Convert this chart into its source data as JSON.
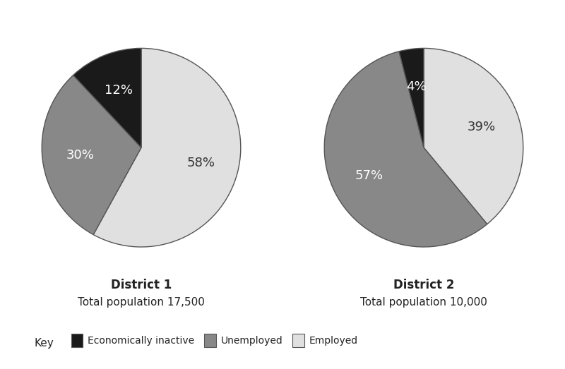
{
  "district1": {
    "title": "District 1",
    "subtitle": "Total population 17,500",
    "values": [
      58,
      30,
      12
    ],
    "labels": [
      "58%",
      "30%",
      "12%"
    ],
    "colors": [
      "#e0e0e0",
      "#888888",
      "#1a1a1a"
    ],
    "startangle": 90,
    "label_colors": [
      "#333333",
      "#ffffff",
      "#ffffff"
    ]
  },
  "district2": {
    "title": "District 2",
    "subtitle": "Total population 10,000",
    "values": [
      39,
      57,
      4
    ],
    "labels": [
      "39%",
      "57%",
      "4%"
    ],
    "colors": [
      "#e0e0e0",
      "#888888",
      "#1a1a1a"
    ],
    "startangle": 90,
    "label_colors": [
      "#333333",
      "#ffffff",
      "#ffffff"
    ]
  },
  "legend": {
    "key_label": "Key",
    "items": [
      {
        "label": "Economically inactive",
        "color": "#1a1a1a"
      },
      {
        "label": "Unemployed",
        "color": "#888888"
      },
      {
        "label": "Employed",
        "color": "#e0e0e0"
      }
    ]
  },
  "background_color": "#ffffff",
  "title_fontsize": 12,
  "subtitle_fontsize": 11,
  "label_fontsize": 13,
  "text_color": "#222222",
  "edge_color": "#555555"
}
